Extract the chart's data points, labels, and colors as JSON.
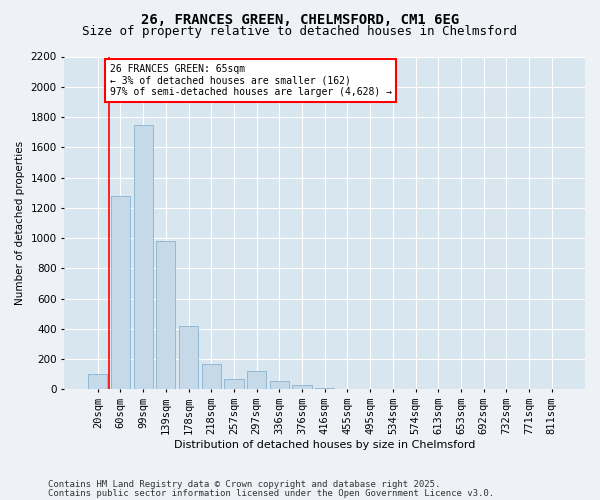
{
  "title": "26, FRANCES GREEN, CHELMSFORD, CM1 6EG",
  "subtitle": "Size of property relative to detached houses in Chelmsford",
  "xlabel": "Distribution of detached houses by size in Chelmsford",
  "ylabel": "Number of detached properties",
  "categories": [
    "20sqm",
    "60sqm",
    "99sqm",
    "139sqm",
    "178sqm",
    "218sqm",
    "257sqm",
    "297sqm",
    "336sqm",
    "376sqm",
    "416sqm",
    "455sqm",
    "495sqm",
    "534sqm",
    "574sqm",
    "613sqm",
    "653sqm",
    "692sqm",
    "732sqm",
    "771sqm",
    "811sqm"
  ],
  "values": [
    100,
    1280,
    1750,
    980,
    420,
    170,
    65,
    120,
    55,
    30,
    10,
    5,
    3,
    2,
    1,
    1,
    1,
    0,
    0,
    0,
    0
  ],
  "bar_color": "#c5d9e8",
  "bar_edge_color": "#7aaac8",
  "vline_color": "red",
  "vline_x": 0.5,
  "ylim": [
    0,
    2200
  ],
  "yticks": [
    0,
    200,
    400,
    600,
    800,
    1000,
    1200,
    1400,
    1600,
    1800,
    2000,
    2200
  ],
  "annotation_text": "26 FRANCES GREEN: 65sqm\n← 3% of detached houses are smaller (162)\n97% of semi-detached houses are larger (4,628) →",
  "annotation_box_color": "white",
  "annotation_box_edge": "red",
  "bg_color": "#eef2f7",
  "plot_bg_color": "#d8e6f0",
  "grid_color": "white",
  "footer_line1": "Contains HM Land Registry data © Crown copyright and database right 2025.",
  "footer_line2": "Contains public sector information licensed under the Open Government Licence v3.0.",
  "title_fontsize": 10,
  "subtitle_fontsize": 9,
  "axis_fontsize": 7.5,
  "ylabel_fontsize": 7.5,
  "xlabel_fontsize": 8,
  "footer_fontsize": 6.5,
  "annotation_fontsize": 7
}
